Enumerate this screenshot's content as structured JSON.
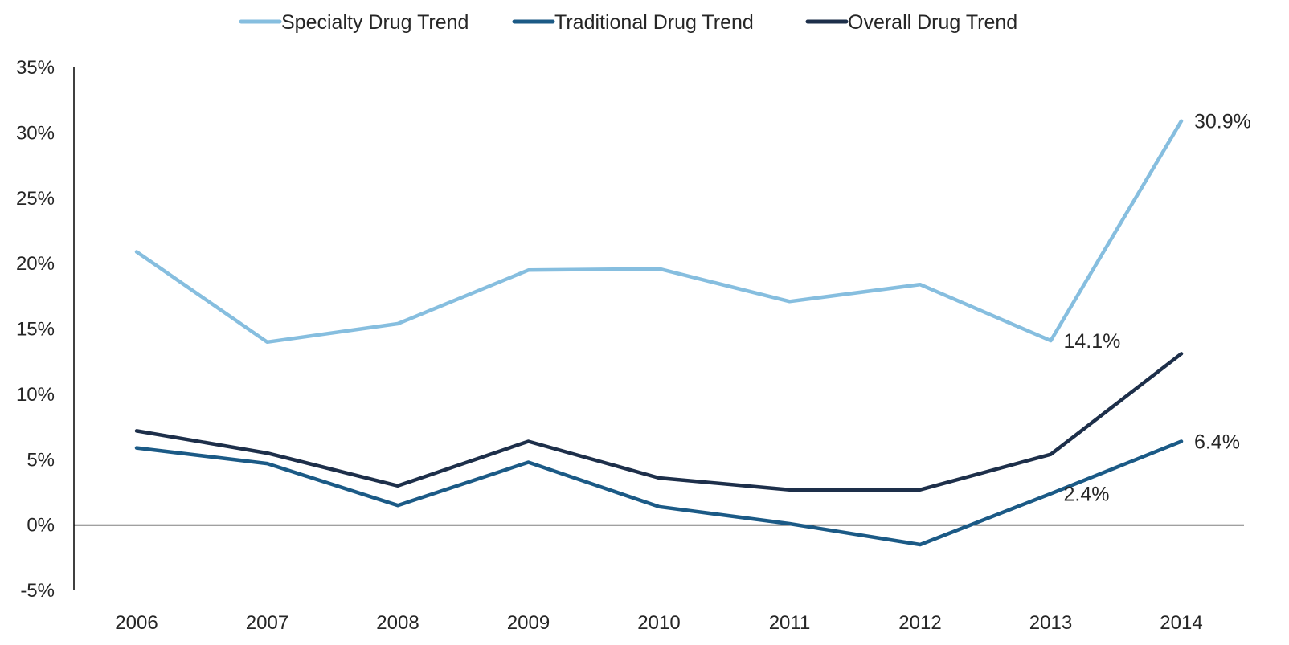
{
  "chart_data": {
    "type": "line",
    "title": "",
    "xlabel": "",
    "ylabel": "",
    "categories": [
      "2006",
      "2007",
      "2008",
      "2009",
      "2010",
      "2011",
      "2012",
      "2013",
      "2014"
    ],
    "ylim": [
      -5,
      35
    ],
    "y_ticks": [
      -5,
      0,
      5,
      10,
      15,
      20,
      25,
      30,
      35
    ],
    "y_tick_labels": [
      "-5%",
      "0%",
      "5%",
      "10%",
      "15%",
      "20%",
      "25%",
      "30%",
      "35%"
    ],
    "grid": false,
    "legend_position": "top",
    "series": [
      {
        "name": "Specialty Drug Trend",
        "color": "#86BEDF",
        "values": [
          20.9,
          14.0,
          15.4,
          19.5,
          19.6,
          17.1,
          18.4,
          14.1,
          30.9
        ]
      },
      {
        "name": "Traditional Drug Trend",
        "color": "#1B5A86",
        "values": [
          5.9,
          4.7,
          1.5,
          4.8,
          1.4,
          0.1,
          -1.5,
          2.4,
          6.4
        ]
      },
      {
        "name": "Overall Drug Trend",
        "color": "#1D2F4A",
        "values": [
          7.2,
          5.5,
          3.0,
          6.4,
          3.6,
          2.7,
          2.7,
          5.4,
          13.1
        ]
      }
    ],
    "data_labels": [
      {
        "series": 0,
        "index": 8,
        "text": "30.9%"
      },
      {
        "series": 0,
        "index": 7,
        "text": "14.1%"
      },
      {
        "series": 1,
        "index": 8,
        "text": "6.4%"
      },
      {
        "series": 1,
        "index": 7,
        "text": "2.4%"
      }
    ]
  }
}
